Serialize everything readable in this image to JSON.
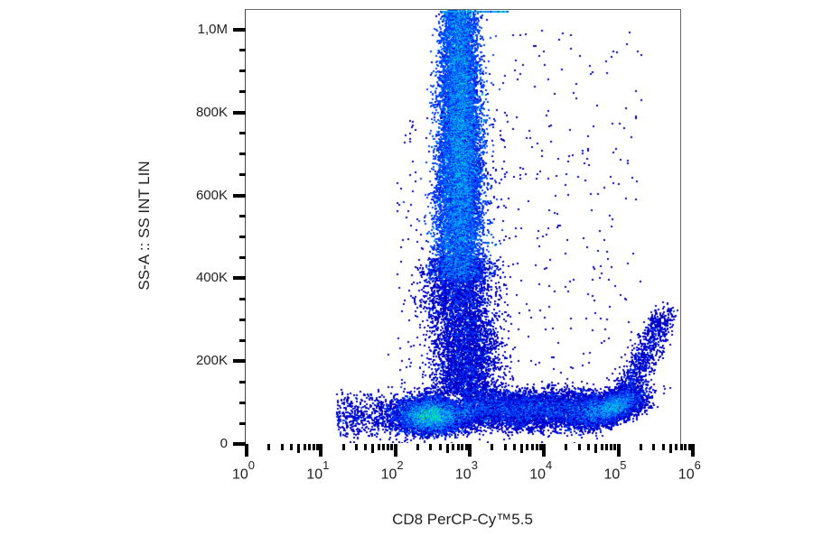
{
  "chart_data": {
    "type": "scatter",
    "subtype": "flow-cytometry density dot plot",
    "title": "",
    "xlabel": "CD8 PerCP-Cy™5.5",
    "ylabel": "SS-A :: SS INT LIN",
    "x_scale": "log",
    "y_scale": "linear",
    "xlim": [
      1,
      1000000
    ],
    "ylim": [
      0,
      1050000
    ],
    "x_ticks": [
      {
        "base": "10",
        "exp": "0",
        "value": 1
      },
      {
        "base": "10",
        "exp": "1",
        "value": 10
      },
      {
        "base": "10",
        "exp": "2",
        "value": 100
      },
      {
        "base": "10",
        "exp": "3",
        "value": 1000
      },
      {
        "base": "10",
        "exp": "4",
        "value": 10000
      },
      {
        "base": "10",
        "exp": "5",
        "value": 100000
      },
      {
        "base": "10",
        "exp": "6",
        "value": 1000000
      }
    ],
    "y_ticks": [
      {
        "label": "0",
        "value": 0
      },
      {
        "label": "200K",
        "value": 200000
      },
      {
        "label": "400K",
        "value": 400000
      },
      {
        "label": "600K",
        "value": 600000
      },
      {
        "label": "800K",
        "value": 800000
      },
      {
        "label": "1,0M",
        "value": 1000000
      }
    ],
    "grid": false,
    "legend": null,
    "color_scale": [
      "#0000c8",
      "#00a0ff",
      "#00e0c0",
      "#40ff40",
      "#ffff00",
      "#ff8000",
      "#ff0000"
    ],
    "populations": [
      {
        "name": "CD8-negative low-SS cluster",
        "x_center": 300,
        "y_center": 70000,
        "x_range": [
          80,
          900
        ],
        "y_range": [
          20000,
          130000
        ],
        "density": "high"
      },
      {
        "name": "CD8-positive low-SS cluster",
        "x_center": 80000,
        "y_center": 90000,
        "x_range": [
          20000,
          180000
        ],
        "y_range": [
          40000,
          150000
        ],
        "density": "medium-high"
      },
      {
        "name": "High-SS granulocyte column",
        "x_center": 700,
        "y_center": 720000,
        "x_range": [
          250,
          1500
        ],
        "y_range": [
          400000,
          1050000
        ],
        "density": "high"
      },
      {
        "name": "Bridge / intermediate events",
        "x_center": 800,
        "y_center": 300000,
        "x_range": [
          200,
          3000
        ],
        "y_range": [
          130000,
          450000
        ],
        "density": "low-medium"
      },
      {
        "name": "Horizontal band between clusters",
        "x_center": 5000,
        "y_center": 85000,
        "x_range": [
          900,
          30000
        ],
        "y_range": [
          40000,
          130000
        ],
        "density": "medium"
      },
      {
        "name": "Sparse scattered events",
        "x_center": 30000,
        "y_center": 600000,
        "x_range": [
          2000,
          300000
        ],
        "y_range": [
          150000,
          1000000
        ],
        "density": "sparse"
      }
    ]
  }
}
